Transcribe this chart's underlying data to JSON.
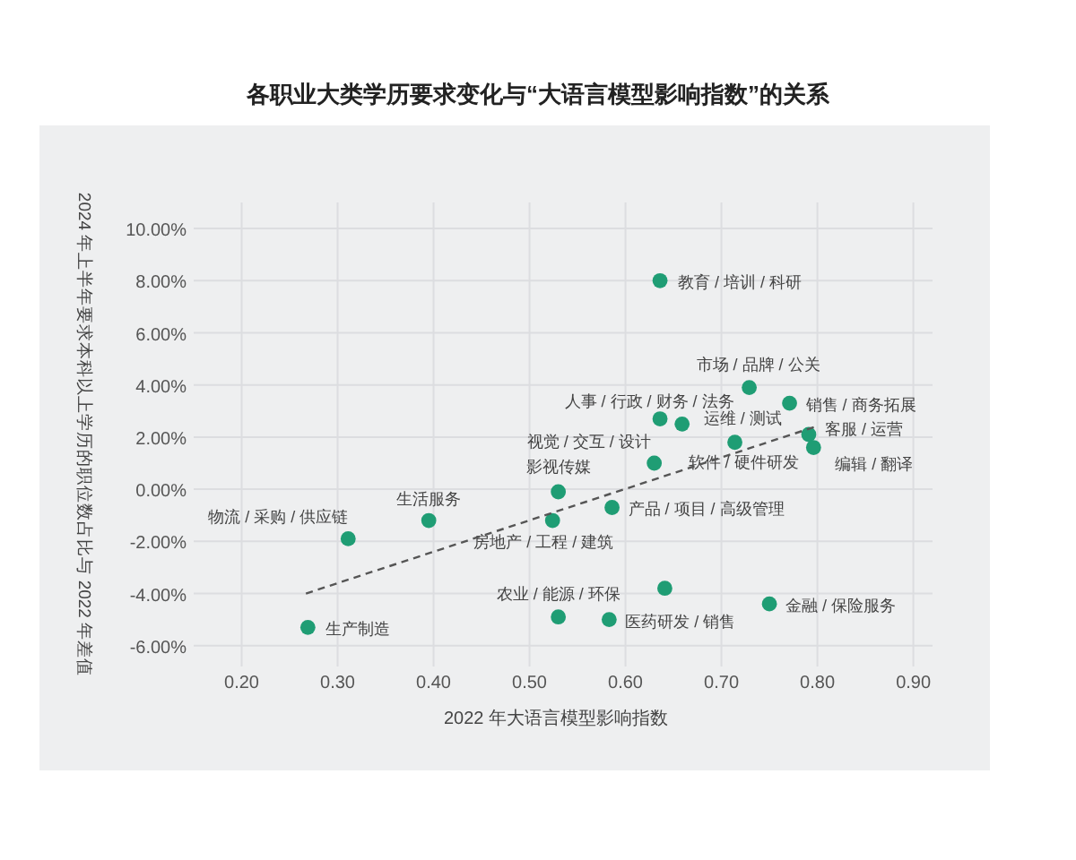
{
  "chart_data": {
    "type": "scatter",
    "title": "各职业大类学历要求变化与“大语言模型影响指数”的关系",
    "xlabel": "2022 年大语言模型影响指数",
    "ylabel": "2024 年上半年要求本科以上学历的职位数占比与 2022 年差值",
    "xlim": [
      0.15,
      0.92
    ],
    "ylim": [
      -6.8,
      11
    ],
    "xticks": [
      {
        "value": 0.2,
        "label": "0.20"
      },
      {
        "value": 0.3,
        "label": "0.30"
      },
      {
        "value": 0.4,
        "label": "0.40"
      },
      {
        "value": 0.5,
        "label": "0.50"
      },
      {
        "value": 0.6,
        "label": "0.60"
      },
      {
        "value": 0.7,
        "label": "0.70"
      },
      {
        "value": 0.8,
        "label": "0.80"
      },
      {
        "value": 0.9,
        "label": "0.90"
      }
    ],
    "yticks": [
      {
        "value": -6,
        "label": "-6.00%"
      },
      {
        "value": -4,
        "label": "-4.00%"
      },
      {
        "value": -2,
        "label": "-2.00%"
      },
      {
        "value": 0,
        "label": "0.00%"
      },
      {
        "value": 2,
        "label": "2.00%"
      },
      {
        "value": 4,
        "label": "4.00%"
      },
      {
        "value": 6,
        "label": "6.00%"
      },
      {
        "value": 8,
        "label": "8.00%"
      },
      {
        "value": 10,
        "label": "10.00%"
      }
    ],
    "grid": true,
    "series": [
      {
        "marker": "circle",
        "color": "#1f9d74",
        "x": [
          0.269,
          0.311,
          0.395,
          0.53,
          0.524,
          0.53,
          0.586,
          0.583,
          0.641,
          0.636,
          0.636,
          0.659,
          0.63,
          0.729,
          0.771,
          0.714,
          0.791,
          0.796,
          0.75
        ],
        "values": [
          -5.3,
          -1.9,
          -1.2,
          -0.1,
          -1.2,
          -4.9,
          -0.7,
          -5.0,
          -3.8,
          8.0,
          2.7,
          2.5,
          1.0,
          3.9,
          3.3,
          1.8,
          2.1,
          1.6,
          -4.4
        ],
        "value_labels": [
          "生产制造",
          "物流 / 采购 / 供应链",
          "生活服务",
          "影视传媒",
          "房地产 / 工程 / 建筑",
          "农业 / 能源 / 环保",
          "产品 / 项目 / 高级管理",
          "医药研发 / 销售",
          null,
          "教育 / 培训 / 科研",
          "人事 / 行政 / 财务 / 法务",
          "运维 / 测试",
          "视觉 / 交互 / 设计",
          "市场 / 品牌 / 公关",
          "销售 / 商务拓展",
          "软件 / 硬件研发",
          "客服 / 运营",
          "编辑 / 翻译",
          "金融 / 保险服务"
        ]
      },
      {
        "type": "line",
        "color": "#555555",
        "line_style": "dashed",
        "x": [
          0.267,
          0.798
        ],
        "values": [
          -4.0,
          2.4
        ]
      }
    ]
  }
}
